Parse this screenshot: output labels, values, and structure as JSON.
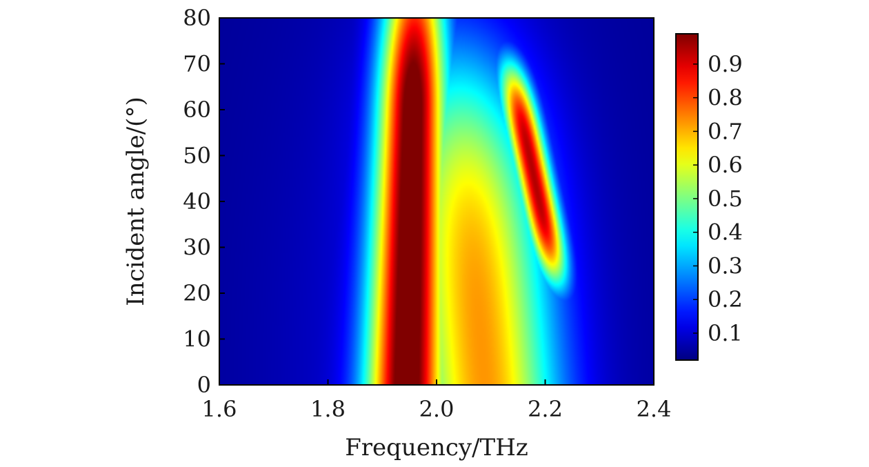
{
  "chart_data": {
    "type": "heatmap",
    "xlabel": "Frequency/THz",
    "ylabel": "Incident angle/(°)",
    "xlim": [
      1.6,
      2.4
    ],
    "ylim": [
      0,
      80
    ],
    "x_ticks": [
      "1.6",
      "1.8",
      "2.0",
      "2.2",
      "2.4"
    ],
    "y_ticks": [
      "0",
      "10",
      "20",
      "30",
      "40",
      "50",
      "60",
      "70",
      "80"
    ],
    "colorbar": {
      "range": [
        0.02,
        0.99
      ],
      "ticks": [
        "0.1",
        "0.2",
        "0.3",
        "0.4",
        "0.5",
        "0.6",
        "0.7",
        "0.8",
        "0.9"
      ],
      "colormap": "jet"
    },
    "features": [
      {
        "feature": "main absorption band",
        "x_center": 1.945,
        "x_range": [
          1.84,
          2.07
        ],
        "y_range": [
          0,
          80
        ],
        "peak_value": 0.99
      },
      {
        "feature": "secondary band",
        "x_start_at_top": 2.1,
        "x_end_at_bottom": 2.22,
        "y_range": [
          28,
          74
        ],
        "peak_value": 0.85
      },
      {
        "feature": "background",
        "value": 0.05
      }
    ]
  }
}
